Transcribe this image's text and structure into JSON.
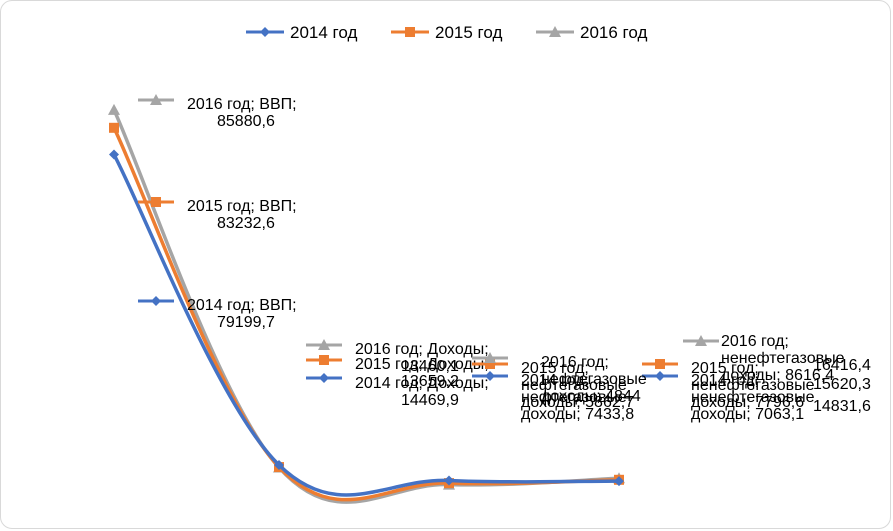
{
  "chart_data": {
    "type": "line",
    "title": "",
    "categories": [
      "ВВП",
      "Доходы",
      "нефтегазовые доходы",
      "ненефтегазовые доходы"
    ],
    "series": [
      {
        "name": "2014 год",
        "color": "#4472c4",
        "marker": "diamond",
        "values": [
          79199.7,
          14469.9,
          7433.8,
          7063.1
        ]
      },
      {
        "name": "2015 год",
        "color": "#ed7d31",
        "marker": "square",
        "values": [
          83232.6,
          13659.2,
          5862.7,
          7796.6
        ]
      },
      {
        "name": "2016 год",
        "color": "#a5a5a5",
        "marker": "triangle",
        "values": [
          85880.6,
          13460.1,
          4844.0,
          8616.4
        ]
      }
    ],
    "labels": [
      [
        "2014 год; ВВП;",
        "79199,7"
      ],
      [
        "2014 год; Доходы;",
        "14469,9"
      ],
      [
        "2014 год;",
        "нефтегазовые",
        "доходы; 7433,8"
      ],
      [
        "2014 год;",
        "ненефтегазовые",
        "доходы; 7063,1"
      ],
      [
        "2015 год; ВВП;",
        "83232,6"
      ],
      [
        "2015 год; Доходы;",
        "13659,2"
      ],
      [
        "2015 год;",
        "нефтегазовые",
        "доходы; 5862,7"
      ],
      [
        "2015 год;",
        "ненефтегазовые",
        "доходы; 7796,6"
      ],
      [
        "2016 год; ВВП;",
        "85880,6"
      ],
      [
        "2016 год; Доходы;",
        "13460,1"
      ],
      [
        "2016 год;",
        "нефтегазовые",
        "доходы; 4844"
      ],
      [
        "2016 год;",
        "ненефтегазовые",
        "доходы; 8616,4"
      ]
    ],
    "extra_labels": [
      "16416,4",
      "15620,3",
      "14831,6"
    ],
    "ylim": [
      0,
      100000
    ],
    "grid": false,
    "legend": "top"
  }
}
